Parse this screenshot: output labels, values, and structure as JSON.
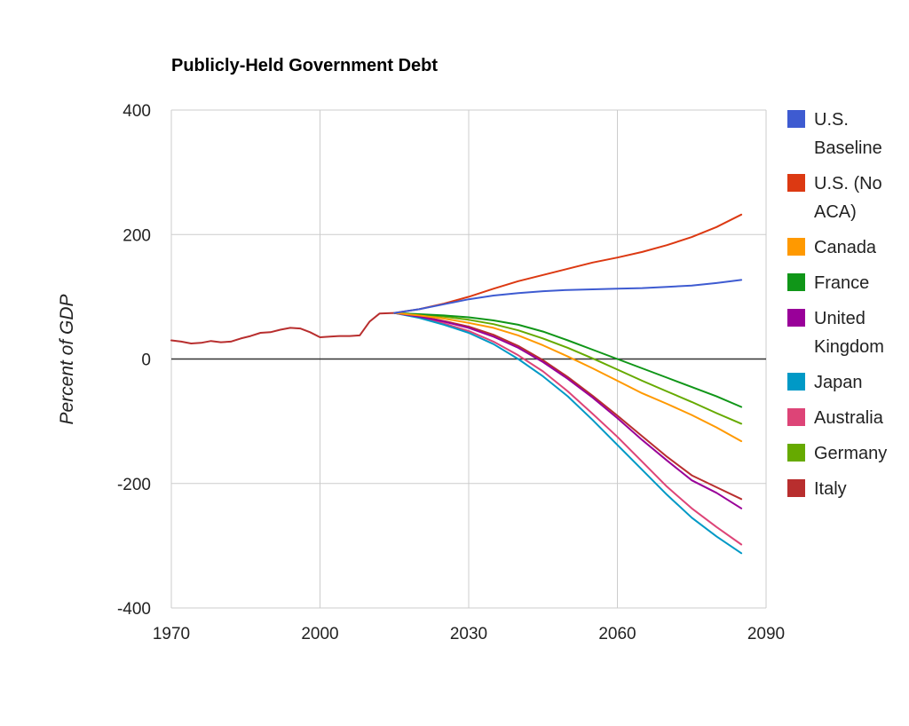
{
  "chart_data": {
    "type": "line",
    "title": "Publicly-Held Government Debt",
    "xlabel": "",
    "ylabel": "Percent of GDP",
    "xlim": [
      1970,
      2090
    ],
    "ylim": [
      -400,
      400
    ],
    "x_ticks": [
      1970,
      2000,
      2030,
      2060,
      2090
    ],
    "y_ticks": [
      400,
      200,
      0,
      -200,
      -400
    ],
    "grid": true,
    "legend": "right",
    "series": [
      {
        "name": "U.S. Baseline",
        "legend_lines": [
          "U.S.",
          "Baseline"
        ],
        "color": "#3e5bd1",
        "points": [
          [
            2015,
            74
          ],
          [
            2020,
            80
          ],
          [
            2025,
            88
          ],
          [
            2030,
            96
          ],
          [
            2035,
            102
          ],
          [
            2040,
            106
          ],
          [
            2045,
            109
          ],
          [
            2050,
            111
          ],
          [
            2055,
            112
          ],
          [
            2060,
            113
          ],
          [
            2065,
            114
          ],
          [
            2070,
            116
          ],
          [
            2075,
            118
          ],
          [
            2080,
            122
          ],
          [
            2085,
            127
          ]
        ]
      },
      {
        "name": "U.S. (No ACA)",
        "legend_lines": [
          "U.S. (No",
          "ACA)"
        ],
        "color": "#dc3912",
        "points": [
          [
            2015,
            74
          ],
          [
            2020,
            80
          ],
          [
            2025,
            89
          ],
          [
            2030,
            100
          ],
          [
            2035,
            113
          ],
          [
            2040,
            125
          ],
          [
            2045,
            135
          ],
          [
            2050,
            145
          ],
          [
            2055,
            155
          ],
          [
            2060,
            163
          ],
          [
            2065,
            172
          ],
          [
            2070,
            183
          ],
          [
            2075,
            196
          ],
          [
            2080,
            212
          ],
          [
            2085,
            232
          ]
        ]
      },
      {
        "name": "Canada",
        "legend_lines": [
          "Canada"
        ],
        "color": "#ff9900",
        "points": [
          [
            2015,
            74
          ],
          [
            2020,
            70
          ],
          [
            2025,
            65
          ],
          [
            2030,
            58
          ],
          [
            2035,
            50
          ],
          [
            2040,
            38
          ],
          [
            2045,
            22
          ],
          [
            2050,
            4
          ],
          [
            2055,
            -15
          ],
          [
            2060,
            -35
          ],
          [
            2065,
            -55
          ],
          [
            2070,
            -72
          ],
          [
            2075,
            -90
          ],
          [
            2080,
            -110
          ],
          [
            2085,
            -132
          ]
        ]
      },
      {
        "name": "France",
        "legend_lines": [
          "France"
        ],
        "color": "#109618",
        "points": [
          [
            2015,
            74
          ],
          [
            2020,
            72
          ],
          [
            2025,
            70
          ],
          [
            2030,
            67
          ],
          [
            2035,
            62
          ],
          [
            2040,
            55
          ],
          [
            2045,
            44
          ],
          [
            2050,
            30
          ],
          [
            2055,
            15
          ],
          [
            2060,
            0
          ],
          [
            2065,
            -15
          ],
          [
            2070,
            -30
          ],
          [
            2075,
            -45
          ],
          [
            2080,
            -60
          ],
          [
            2085,
            -77
          ]
        ]
      },
      {
        "name": "United Kingdom",
        "legend_lines": [
          "United",
          "Kingdom"
        ],
        "color": "#990099",
        "points": [
          [
            2015,
            74
          ],
          [
            2020,
            68
          ],
          [
            2025,
            60
          ],
          [
            2030,
            50
          ],
          [
            2035,
            36
          ],
          [
            2040,
            18
          ],
          [
            2045,
            -5
          ],
          [
            2050,
            -32
          ],
          [
            2055,
            -62
          ],
          [
            2060,
            -95
          ],
          [
            2065,
            -130
          ],
          [
            2070,
            -163
          ],
          [
            2075,
            -195
          ],
          [
            2080,
            -215
          ],
          [
            2085,
            -240
          ]
        ]
      },
      {
        "name": "Japan",
        "legend_lines": [
          "Japan"
        ],
        "color": "#0099c6",
        "points": [
          [
            2015,
            74
          ],
          [
            2020,
            66
          ],
          [
            2025,
            55
          ],
          [
            2030,
            42
          ],
          [
            2035,
            24
          ],
          [
            2040,
            0
          ],
          [
            2045,
            -28
          ],
          [
            2050,
            -60
          ],
          [
            2055,
            -98
          ],
          [
            2060,
            -138
          ],
          [
            2065,
            -178
          ],
          [
            2070,
            -218
          ],
          [
            2075,
            -255
          ],
          [
            2080,
            -285
          ],
          [
            2085,
            -312
          ]
        ]
      },
      {
        "name": "Australia",
        "legend_lines": [
          "Australia"
        ],
        "color": "#dd4477",
        "points": [
          [
            2015,
            74
          ],
          [
            2020,
            67
          ],
          [
            2025,
            57
          ],
          [
            2030,
            45
          ],
          [
            2035,
            28
          ],
          [
            2040,
            6
          ],
          [
            2045,
            -20
          ],
          [
            2050,
            -52
          ],
          [
            2055,
            -88
          ],
          [
            2060,
            -125
          ],
          [
            2065,
            -165
          ],
          [
            2070,
            -205
          ],
          [
            2075,
            -240
          ],
          [
            2080,
            -270
          ],
          [
            2085,
            -298
          ]
        ]
      },
      {
        "name": "Germany",
        "legend_lines": [
          "Germany"
        ],
        "color": "#66aa00",
        "points": [
          [
            2015,
            74
          ],
          [
            2020,
            71
          ],
          [
            2025,
            68
          ],
          [
            2030,
            63
          ],
          [
            2035,
            56
          ],
          [
            2040,
            46
          ],
          [
            2045,
            33
          ],
          [
            2050,
            18
          ],
          [
            2055,
            1
          ],
          [
            2060,
            -17
          ],
          [
            2065,
            -35
          ],
          [
            2070,
            -52
          ],
          [
            2075,
            -69
          ],
          [
            2080,
            -87
          ],
          [
            2085,
            -104
          ]
        ]
      },
      {
        "name": "Italy",
        "legend_lines": [
          "Italy"
        ],
        "color": "#b82e2e",
        "points": [
          [
            1970,
            30
          ],
          [
            1972,
            28
          ],
          [
            1974,
            25
          ],
          [
            1976,
            26
          ],
          [
            1978,
            29
          ],
          [
            1980,
            27
          ],
          [
            1982,
            28
          ],
          [
            1984,
            33
          ],
          [
            1986,
            37
          ],
          [
            1988,
            42
          ],
          [
            1990,
            43
          ],
          [
            1992,
            47
          ],
          [
            1994,
            50
          ],
          [
            1996,
            49
          ],
          [
            1998,
            43
          ],
          [
            2000,
            35
          ],
          [
            2002,
            36
          ],
          [
            2004,
            37
          ],
          [
            2006,
            37
          ],
          [
            2008,
            38
          ],
          [
            2010,
            60
          ],
          [
            2012,
            73
          ],
          [
            2015,
            74
          ],
          [
            2020,
            69
          ],
          [
            2025,
            61
          ],
          [
            2030,
            52
          ],
          [
            2035,
            39
          ],
          [
            2040,
            21
          ],
          [
            2045,
            -2
          ],
          [
            2050,
            -29
          ],
          [
            2055,
            -59
          ],
          [
            2060,
            -91
          ],
          [
            2065,
            -124
          ],
          [
            2070,
            -157
          ],
          [
            2075,
            -187
          ],
          [
            2080,
            -206
          ],
          [
            2085,
            -225
          ]
        ]
      }
    ]
  }
}
